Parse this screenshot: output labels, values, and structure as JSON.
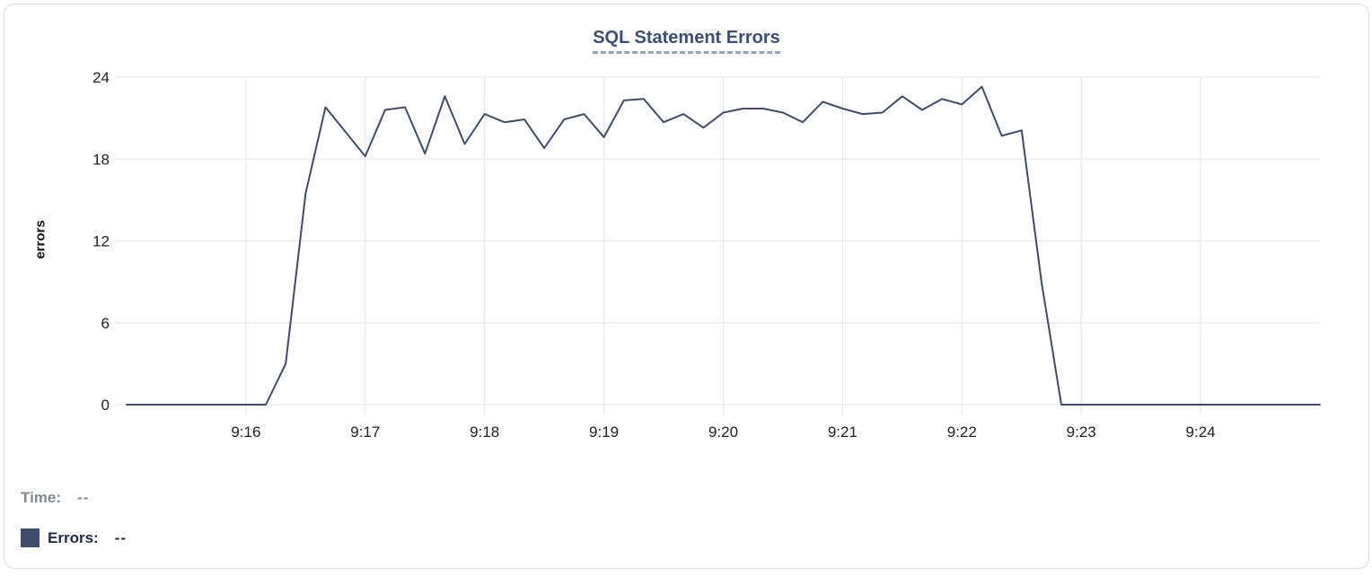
{
  "header": {
    "title": "SQL Statement Errors"
  },
  "readout": {
    "time_label": "Time:",
    "time_value": "--",
    "errors_label": "Errors:",
    "errors_value": "--"
  },
  "colors": {
    "line": "#3e4c6d",
    "grid": "#e9e9e9",
    "title": "#3b5075",
    "title_underline": "#93a5c6",
    "tick_text": "#202124",
    "time_label_gray": "#85898f",
    "errors_label_navy": "#1e2a4a",
    "legend_swatch": "#3e4c6d",
    "card_border": "#d9dbde"
  },
  "chart_data": {
    "type": "line",
    "title": "SQL Statement Errors",
    "xlabel": "",
    "ylabel": "errors",
    "ylim": [
      0,
      24
    ],
    "y_ticks": [
      0,
      6,
      12,
      18,
      24
    ],
    "x_tick_labels": [
      "9:16",
      "9:17",
      "9:18",
      "9:19",
      "9:20",
      "9:21",
      "9:22",
      "9:23",
      "9:24"
    ],
    "x_domain": [
      "9:15:00",
      "9:25:00"
    ],
    "grid": true,
    "legend_position": "bottom-left",
    "series": [
      {
        "name": "Errors",
        "color": "#3e4c6d",
        "x_times": [
          "9:15:00",
          "9:15:10",
          "9:15:20",
          "9:15:30",
          "9:15:40",
          "9:15:50",
          "9:16:00",
          "9:16:10",
          "9:16:20",
          "9:16:30",
          "9:16:40",
          "9:16:50",
          "9:17:00",
          "9:17:10",
          "9:17:20",
          "9:17:30",
          "9:17:40",
          "9:17:50",
          "9:18:00",
          "9:18:10",
          "9:18:20",
          "9:18:30",
          "9:18:40",
          "9:18:50",
          "9:19:00",
          "9:19:10",
          "9:19:20",
          "9:19:30",
          "9:19:40",
          "9:19:50",
          "9:20:00",
          "9:20:10",
          "9:20:20",
          "9:20:30",
          "9:20:40",
          "9:20:50",
          "9:21:00",
          "9:21:10",
          "9:21:20",
          "9:21:30",
          "9:21:40",
          "9:21:50",
          "9:22:00",
          "9:22:10",
          "9:22:20",
          "9:22:30",
          "9:22:40",
          "9:22:50",
          "9:23:00",
          "9:23:10",
          "9:23:20",
          "9:23:30",
          "9:23:40",
          "9:23:50",
          "9:24:00",
          "9:24:10",
          "9:24:20",
          "9:24:30",
          "9:24:40",
          "9:24:50",
          "9:25:00"
        ],
        "values": [
          0,
          0,
          0,
          0,
          0,
          0,
          0,
          0,
          3,
          15.5,
          21.8,
          20,
          18.2,
          21.6,
          21.8,
          18.4,
          22.6,
          19.1,
          21.3,
          20.7,
          20.9,
          18.8,
          20.9,
          21.3,
          19.6,
          22.3,
          22.4,
          20.7,
          21.3,
          20.3,
          21.4,
          21.7,
          21.7,
          21.4,
          20.7,
          22.2,
          21.7,
          21.3,
          21.4,
          22.6,
          21.6,
          22.4,
          22,
          23.3,
          19.7,
          20.1,
          9,
          0,
          0,
          0,
          0,
          0,
          0,
          0,
          0,
          0,
          0,
          0,
          0,
          0,
          0
        ]
      }
    ]
  }
}
